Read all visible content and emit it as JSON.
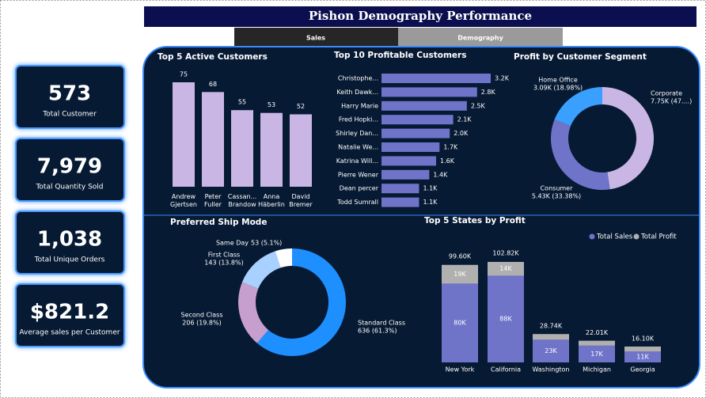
{
  "title": "Pishon Demography Performance",
  "tabs": [
    "Sales",
    "Demography"
  ],
  "kpis": [
    {
      "value": "573",
      "label": "Total Customer"
    },
    {
      "value": "7,979",
      "label": "Total Quantity Sold"
    },
    {
      "value": "1,038",
      "label": "Total Unique Orders"
    },
    {
      "value": "$821.2",
      "label": "Average sales per Customer"
    }
  ],
  "chart_data": [
    {
      "type": "bar",
      "title": "Top 5 Active Customers",
      "categories": [
        "Andrew Gjertsen",
        "Peter Fuller",
        "Cassan... Brandow",
        "Anna Häberlin",
        "David Bremer"
      ],
      "values": [
        75,
        68,
        55,
        53,
        52
      ],
      "color": "#c9b6e4"
    },
    {
      "type": "hbar",
      "title": "Top 10 Profitable Customers",
      "categories": [
        "Christophe...",
        "Keith Dawk...",
        "Harry Marie",
        "Fred Hopki...",
        "Shirley Dan...",
        "Natalie We...",
        "Katrina Will...",
        "Pierre Wener",
        "Dean percer",
        "Todd Sumrall"
      ],
      "values": [
        3200,
        2800,
        2500,
        2100,
        2000,
        1700,
        1600,
        1400,
        1100,
        1100
      ],
      "value_labels": [
        "3.2K",
        "2.8K",
        "2.5K",
        "2.1K",
        "2.0K",
        "1.7K",
        "1.6K",
        "1.4K",
        "1.1K",
        "1.1K"
      ],
      "color": "#6f74c9"
    },
    {
      "type": "donut",
      "title": "Profit by Customer Segment",
      "categories": [
        "Corporate",
        "Consumer",
        "Home Office"
      ],
      "values": [
        7750,
        5430,
        3090
      ],
      "value_labels": [
        "7.75K (47....)",
        "5.43K (33.38%)",
        "3.09K (18.98%)"
      ],
      "colors": [
        "#c9b6e4",
        "#6f74c9",
        "#3aa0ff"
      ]
    },
    {
      "type": "donut",
      "title": "Preferred Ship Mode",
      "categories": [
        "Standard Class",
        "Second Class",
        "First Class",
        "Same Day"
      ],
      "values": [
        636,
        206,
        143,
        53
      ],
      "value_labels": [
        "636 (61.3%)",
        "206 (19.8%)",
        "143 (13.8%)",
        "53 (5.1%)"
      ],
      "colors": [
        "#1e8fff",
        "#c79fcf",
        "#a9d1ff",
        "#ffffff"
      ]
    },
    {
      "type": "stacked_bar",
      "title": "Top 5 States by Profit",
      "categories": [
        "New York",
        "California",
        "Washington",
        "Michigan",
        "Georgia"
      ],
      "series": [
        {
          "name": "Total Sales",
          "color": "#6f74c9",
          "values": [
            80000,
            88000,
            23000,
            17000,
            11000
          ],
          "value_labels": [
            "80K",
            "88K",
            "23K",
            "17K",
            "11K"
          ]
        },
        {
          "name": "Total Profit",
          "color": "#b0b0b0",
          "values": [
            19000,
            14000,
            5740,
            5010,
            5100
          ],
          "value_labels": [
            "19K",
            "14K",
            null,
            null,
            null
          ]
        }
      ],
      "totals": [
        99600,
        102820,
        28740,
        22010,
        16100
      ],
      "total_labels": [
        "99.60K",
        "102.82K",
        "28.74K",
        "22.01K",
        "16.10K"
      ],
      "legend": "top-right"
    }
  ]
}
